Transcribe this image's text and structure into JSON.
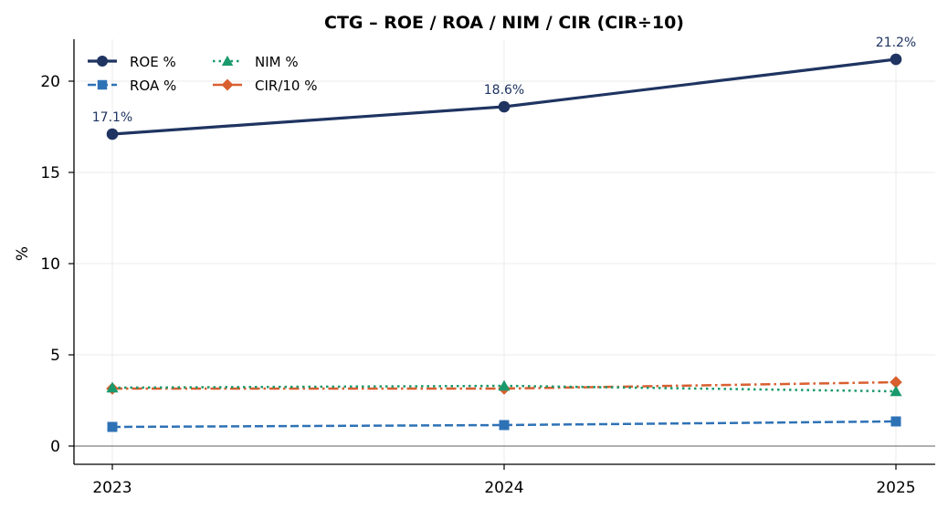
{
  "chart_data": {
    "type": "line",
    "title": "CTG – ROE / ROA / NIM / CIR  (CIR÷10)",
    "xlabel": "",
    "ylabel": "%",
    "categories": [
      "2023",
      "2024",
      "2025"
    ],
    "ylim": [
      -1,
      22.3
    ],
    "yticks": [
      0,
      5,
      10,
      15,
      20
    ],
    "grid": true,
    "legend_position": "top-left",
    "series": [
      {
        "name": "ROE %",
        "values": [
          17.1,
          18.6,
          21.2
        ],
        "color": "#1f3461",
        "marker": "circle",
        "dash": "solid",
        "labels": [
          "17.1%",
          "18.6%",
          "21.2%"
        ]
      },
      {
        "name": "ROA %",
        "values": [
          1.05,
          1.15,
          1.35
        ],
        "color": "#2e72b6",
        "marker": "square",
        "dash": "dashed"
      },
      {
        "name": "NIM %",
        "values": [
          3.2,
          3.3,
          3.0
        ],
        "color": "#1a9a6c",
        "marker": "triangle",
        "dash": "dotted"
      },
      {
        "name": "CIR/10 %",
        "values": [
          3.15,
          3.15,
          3.5
        ],
        "color": "#d95f30",
        "marker": "diamond",
        "dash": "dashdot"
      }
    ]
  }
}
